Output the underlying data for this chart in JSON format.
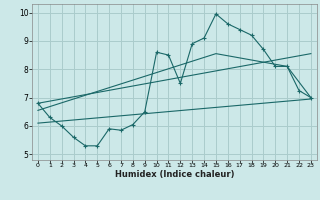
{
  "xlabel": "Humidex (Indice chaleur)",
  "bg_color": "#cce8e8",
  "grid_color": "#aacccc",
  "line_color": "#1a6868",
  "xlim": [
    -0.5,
    23.5
  ],
  "ylim": [
    4.8,
    10.3
  ],
  "xticks": [
    0,
    1,
    2,
    3,
    4,
    5,
    6,
    7,
    8,
    9,
    10,
    11,
    12,
    13,
    14,
    15,
    16,
    17,
    18,
    19,
    20,
    21,
    22,
    23
  ],
  "yticks": [
    5,
    6,
    7,
    8,
    9,
    10
  ],
  "main_line_x": [
    0,
    1,
    2,
    3,
    4,
    5,
    6,
    7,
    8,
    9,
    10,
    11,
    12,
    13,
    14,
    15,
    16,
    17,
    18,
    19,
    20,
    21,
    22,
    23
  ],
  "main_line_y": [
    6.8,
    6.3,
    6.0,
    5.6,
    5.3,
    5.3,
    5.9,
    5.85,
    6.05,
    6.5,
    8.6,
    8.5,
    7.5,
    8.9,
    9.1,
    9.95,
    9.6,
    9.4,
    9.2,
    8.7,
    8.1,
    8.1,
    7.25,
    7.0
  ],
  "upper_line_x": [
    0,
    23
  ],
  "upper_line_y": [
    6.8,
    8.55
  ],
  "upper_line2_x": [
    0,
    15,
    21,
    23
  ],
  "upper_line2_y": [
    6.55,
    8.55,
    8.1,
    7.0
  ],
  "lower_line_x": [
    0,
    23
  ],
  "lower_line_y": [
    6.1,
    6.95
  ]
}
